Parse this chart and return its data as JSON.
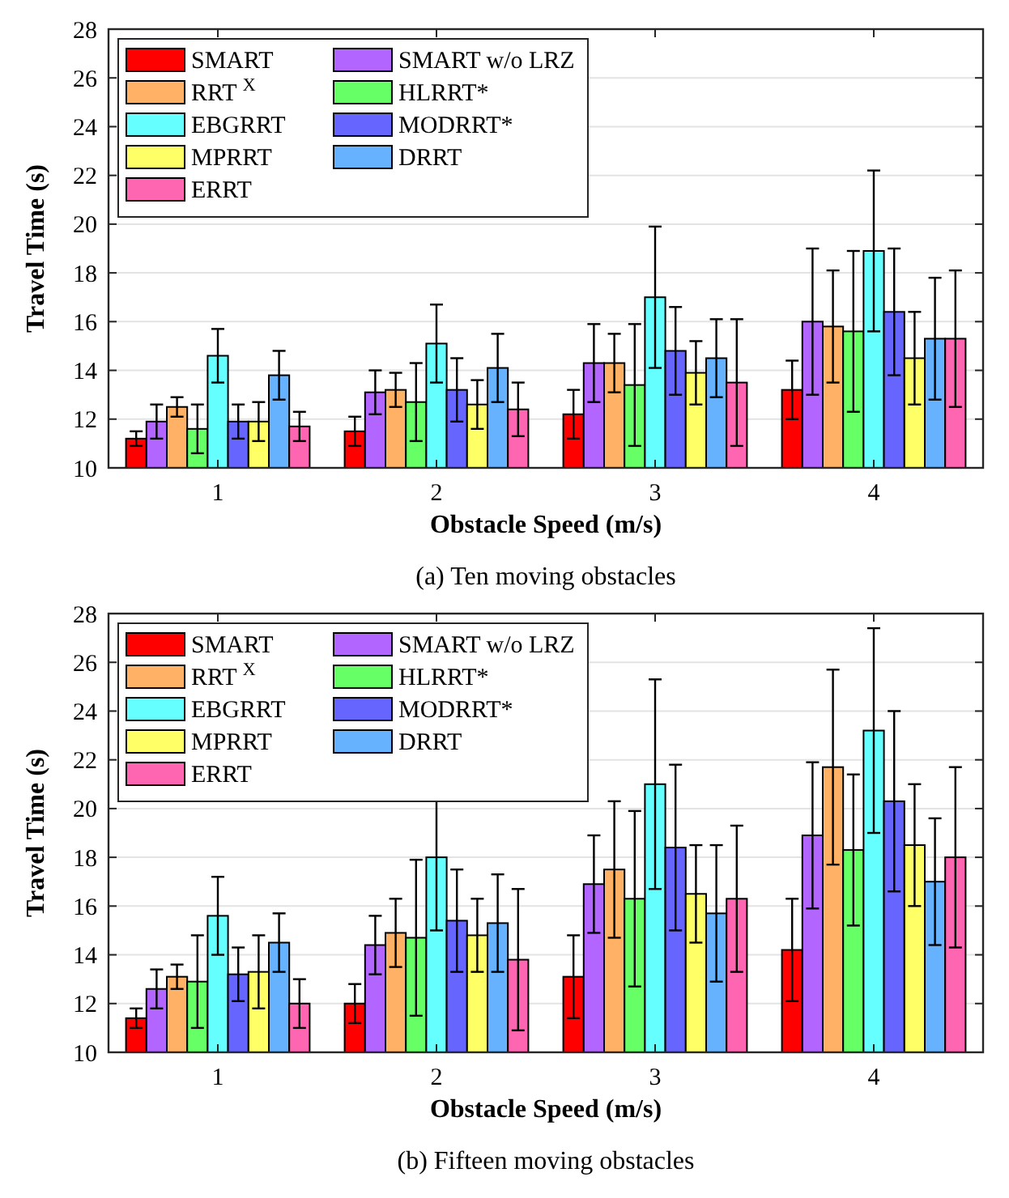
{
  "chart_data": [
    {
      "type": "bar",
      "title": "(a) Ten moving obstacles",
      "xlabel": "Obstacle Speed (m/s)",
      "ylabel": "Travel Time (s)",
      "categories": [
        "1",
        "2",
        "3",
        "4"
      ],
      "ylim": [
        10,
        28
      ],
      "yticks": [
        10,
        12,
        14,
        16,
        18,
        20,
        22,
        24,
        26,
        28
      ],
      "grid": "y",
      "legend": "top left",
      "series": [
        {
          "name": "SMART",
          "color": "#ff0000",
          "values": [
            11.2,
            11.5,
            12.2,
            13.2
          ],
          "errors": [
            0.3,
            0.6,
            1.0,
            1.2
          ]
        },
        {
          "name": "SMART w/o LRZ",
          "color": "#b266ff",
          "values": [
            11.9,
            13.1,
            14.3,
            16.0
          ],
          "errors": [
            0.7,
            0.9,
            1.6,
            3.0
          ]
        },
        {
          "name": "RRT $^{X}$",
          "color": "#ffb266",
          "values": [
            12.5,
            13.2,
            14.3,
            15.8
          ],
          "errors": [
            0.4,
            0.7,
            1.2,
            2.3
          ]
        },
        {
          "name": "HLRRT*",
          "color": "#66ff66",
          "values": [
            11.6,
            12.7,
            13.4,
            15.6
          ],
          "errors": [
            1.0,
            1.6,
            2.5,
            3.3
          ]
        },
        {
          "name": "EBGRRT",
          "color": "#66ffff",
          "values": [
            14.6,
            15.1,
            17.0,
            18.9
          ],
          "errors": [
            1.1,
            1.6,
            2.9,
            3.3
          ]
        },
        {
          "name": "MODRRT*",
          "color": "#6666ff",
          "values": [
            11.9,
            13.2,
            14.8,
            16.4
          ],
          "errors": [
            0.7,
            1.3,
            1.8,
            2.6
          ]
        },
        {
          "name": "MPRRT",
          "color": "#ffff66",
          "values": [
            11.9,
            12.6,
            13.9,
            14.5
          ],
          "errors": [
            0.8,
            1.0,
            1.3,
            1.9
          ]
        },
        {
          "name": "DRRT",
          "color": "#66b2ff",
          "values": [
            13.8,
            14.1,
            14.5,
            15.3
          ],
          "errors": [
            1.0,
            1.4,
            1.6,
            2.5
          ]
        },
        {
          "name": "ERRT",
          "color": "#ff66b2",
          "values": [
            11.7,
            12.4,
            13.5,
            15.3
          ],
          "errors": [
            0.6,
            1.1,
            2.6,
            2.8
          ]
        }
      ]
    },
    {
      "type": "bar",
      "title": "(b) Fifteen moving obstacles",
      "xlabel": "Obstacle Speed (m/s)",
      "ylabel": "Travel Time (s)",
      "categories": [
        "1",
        "2",
        "3",
        "4"
      ],
      "ylim": [
        10,
        28
      ],
      "yticks": [
        10,
        12,
        14,
        16,
        18,
        20,
        22,
        24,
        26,
        28
      ],
      "grid": "y",
      "legend": "top left",
      "series": [
        {
          "name": "SMART",
          "color": "#ff0000",
          "values": [
            11.4,
            12.0,
            13.1,
            14.2
          ],
          "errors": [
            0.4,
            0.8,
            1.7,
            2.1
          ]
        },
        {
          "name": "SMART w/o LRZ",
          "color": "#b266ff",
          "values": [
            12.6,
            14.4,
            16.9,
            18.9
          ],
          "errors": [
            0.8,
            1.2,
            2.0,
            3.0
          ]
        },
        {
          "name": "RRT $^{X}$",
          "color": "#ffb266",
          "values": [
            13.1,
            14.9,
            17.5,
            21.7
          ],
          "errors": [
            0.5,
            1.4,
            2.8,
            4.0
          ]
        },
        {
          "name": "HLRRT*",
          "color": "#66ff66",
          "values": [
            12.9,
            14.7,
            16.3,
            18.3
          ],
          "errors": [
            1.9,
            3.2,
            3.6,
            3.1
          ]
        },
        {
          "name": "EBGRRT",
          "color": "#66ffff",
          "values": [
            15.6,
            18.0,
            21.0,
            23.2
          ],
          "errors": [
            1.6,
            3.0,
            4.3,
            4.2
          ]
        },
        {
          "name": "MODRRT*",
          "color": "#6666ff",
          "values": [
            13.2,
            15.4,
            18.4,
            20.3
          ],
          "errors": [
            1.1,
            2.1,
            3.4,
            3.7
          ]
        },
        {
          "name": "MPRRT",
          "color": "#ffff66",
          "values": [
            13.3,
            14.8,
            16.5,
            18.5
          ],
          "errors": [
            1.5,
            1.5,
            2.0,
            2.5
          ]
        },
        {
          "name": "DRRT",
          "color": "#66b2ff",
          "values": [
            14.5,
            15.3,
            15.7,
            17.0
          ],
          "errors": [
            1.2,
            2.0,
            2.8,
            2.6
          ]
        },
        {
          "name": "ERRT",
          "color": "#ff66b2",
          "values": [
            12.0,
            13.8,
            16.3,
            18.0
          ],
          "errors": [
            1.0,
            2.9,
            3.0,
            3.7
          ]
        }
      ]
    }
  ]
}
